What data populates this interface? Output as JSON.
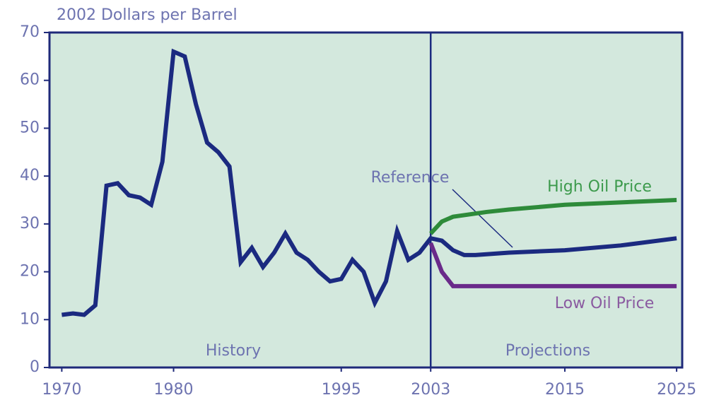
{
  "chart_data": {
    "type": "line",
    "title": "2002 Dollars per Barrel",
    "xlim": [
      1968.9,
      2025.5
    ],
    "xticks": [
      1970,
      1980,
      1995,
      2003,
      2015,
      2025
    ],
    "ylim": [
      0,
      70
    ],
    "yticks": [
      0,
      10,
      20,
      30,
      40,
      50,
      60,
      70
    ],
    "divider": 2003,
    "annotations": {
      "history": "History",
      "projections": "Projections"
    },
    "series": [
      {
        "name": "Reference",
        "color": "#1b2a80",
        "x": [
          1970,
          1971,
          1972,
          1973,
          1974,
          1975,
          1976,
          1977,
          1978,
          1979,
          1980,
          1981,
          1982,
          1983,
          1984,
          1985,
          1986,
          1987,
          1988,
          1989,
          1990,
          1991,
          1992,
          1993,
          1994,
          1995,
          1996,
          1997,
          1998,
          1999,
          2000,
          2001,
          2002,
          2003,
          2004,
          2005,
          2006,
          2007,
          2010,
          2015,
          2020,
          2025
        ],
        "values": [
          11,
          11.3,
          11,
          13,
          38,
          38.5,
          36,
          35.5,
          34,
          43,
          66,
          65,
          55,
          47,
          45,
          42,
          22,
          25,
          21,
          24,
          28,
          24,
          22.5,
          20,
          18,
          18.5,
          22.5,
          20,
          13.5,
          18,
          28.5,
          22.5,
          24,
          27,
          26.5,
          24.5,
          23.5,
          23.5,
          24,
          24.5,
          25.5,
          27
        ]
      },
      {
        "name": "High Oil Price",
        "color": "#2e8b3a",
        "x": [
          2003,
          2004,
          2005,
          2008,
          2010,
          2015,
          2020,
          2025
        ],
        "values": [
          28,
          30.5,
          31.5,
          32.5,
          33,
          34,
          34.5,
          35
        ]
      },
      {
        "name": "Low Oil Price",
        "color": "#6a2a8a",
        "x": [
          2003,
          2004,
          2005,
          2025
        ],
        "values": [
          26,
          20,
          17,
          17
        ]
      }
    ]
  }
}
